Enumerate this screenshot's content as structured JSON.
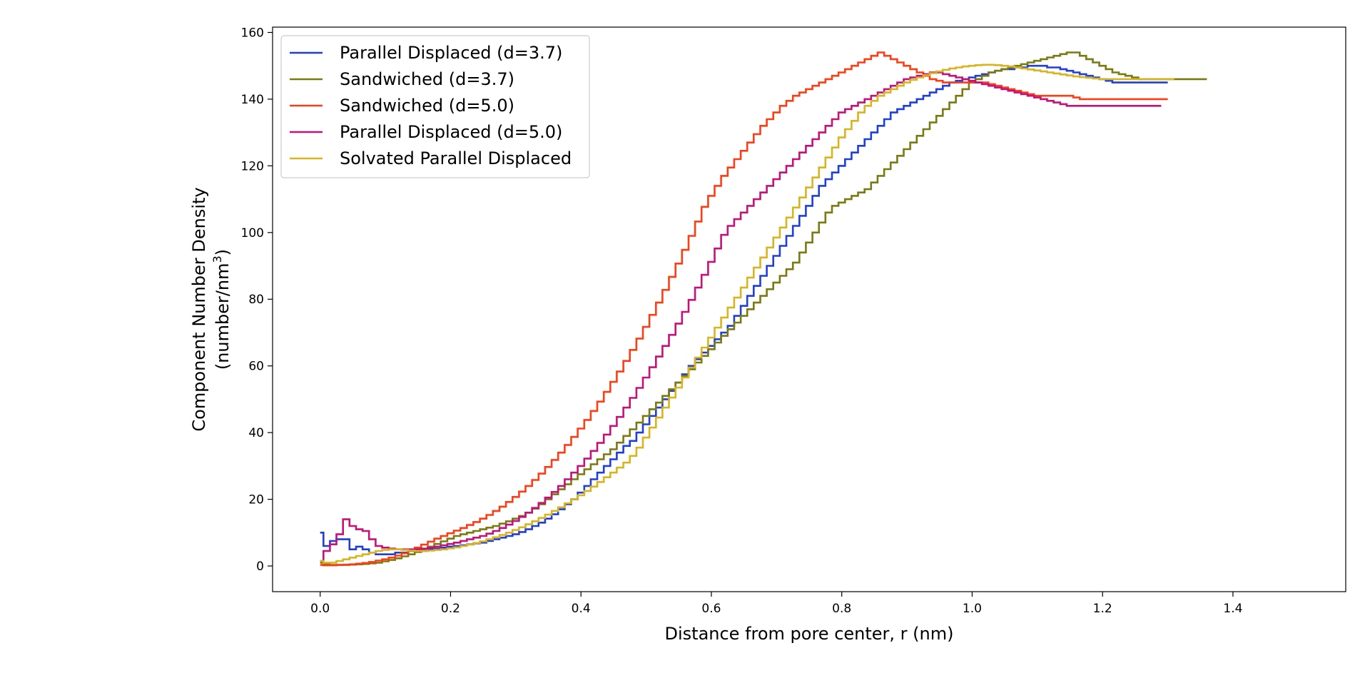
{
  "chart_data": {
    "type": "line",
    "step": true,
    "xlabel": "Distance from pore center, r (nm)",
    "ylabel_line1": "Component Number Density",
    "ylabel_line2": "(number/nm",
    "ylabel_sup": "3",
    "ylabel_close": ")",
    "xlim": [
      -0.073,
      1.573
    ],
    "ylim": [
      -7.7,
      161.6
    ],
    "xticks": [
      0.0,
      0.2,
      0.4,
      0.6,
      0.8,
      1.0,
      1.2,
      1.4
    ],
    "xtick_labels": [
      "0.0",
      "0.2",
      "0.4",
      "0.6",
      "0.8",
      "1.0",
      "1.2",
      "1.4"
    ],
    "yticks": [
      0,
      20,
      40,
      60,
      80,
      100,
      120,
      140,
      160
    ],
    "ytick_labels": [
      "0",
      "20",
      "40",
      "60",
      "80",
      "100",
      "120",
      "140",
      "160"
    ],
    "legend_position": "top-left",
    "grid": false,
    "x_start": 0.0,
    "bin_width": 0.01,
    "series": [
      {
        "name": "Parallel Displaced (d=3.7)",
        "color": "#1f3fd8",
        "values": [
          10,
          6,
          7.5,
          8,
          8,
          5,
          5.8,
          5,
          4,
          3.5,
          3.5,
          3.5,
          4,
          4,
          4.5,
          4.5,
          4.5,
          5,
          5.2,
          5.5,
          5.8,
          6,
          6.2,
          6.5,
          6.8,
          7,
          7.5,
          8,
          8.5,
          9,
          9.5,
          10.2,
          11,
          12,
          13,
          14.2,
          15.5,
          17,
          18.5,
          20,
          22,
          24,
          26,
          28,
          30,
          32,
          34,
          36,
          37.5,
          40,
          42.5,
          45,
          47.5,
          50,
          52.5,
          55,
          57.5,
          60,
          62,
          64,
          66,
          68,
          70,
          72,
          75,
          78,
          81,
          84,
          87,
          90,
          93,
          96,
          99,
          102,
          105,
          108,
          111,
          114,
          116,
          118,
          120,
          122,
          124,
          126,
          128,
          130,
          132,
          134,
          136,
          137,
          138,
          139,
          140,
          141,
          142,
          143,
          144,
          145,
          145.5,
          146,
          146.5,
          147,
          147.5,
          148,
          148.5,
          149,
          149,
          149.5,
          149.5,
          150,
          150,
          150,
          149.5,
          149.5,
          149,
          148.5,
          148,
          147.5,
          147,
          146.5,
          146,
          145.5,
          145,
          145,
          145,
          145,
          145,
          145,
          145,
          145,
          145
        ]
      },
      {
        "name": "Sandwiched (d=3.7)",
        "color": "#7a7a10",
        "values": [
          1,
          0.5,
          0.3,
          0.3,
          0.3,
          0.4,
          0.5,
          0.6,
          0.8,
          1,
          1.4,
          1.8,
          2.3,
          2.9,
          3.5,
          4.2,
          5,
          5.8,
          6.6,
          7.4,
          8.2,
          9,
          9.5,
          10,
          10.5,
          11,
          11.5,
          12,
          12.7,
          13.4,
          14.2,
          15,
          16,
          17.2,
          18.5,
          20,
          21.5,
          23,
          24.5,
          26,
          27.5,
          29,
          30.5,
          32,
          33.5,
          35,
          37,
          39,
          41,
          43,
          45,
          47,
          49,
          51,
          53,
          55,
          57,
          59,
          61,
          63,
          65,
          67,
          69,
          71,
          73,
          75,
          77,
          79,
          81,
          83,
          85,
          87,
          89,
          91,
          94,
          97,
          100,
          103,
          106,
          108,
          109,
          110,
          111,
          112,
          113,
          115,
          117,
          119,
          121,
          123,
          125,
          127,
          129,
          131,
          133,
          135,
          137,
          139,
          141,
          143,
          145,
          146,
          147,
          148,
          148.5,
          149,
          149.5,
          150,
          150.5,
          151,
          151.5,
          152,
          152.5,
          153,
          153.5,
          154,
          154,
          153,
          152,
          151,
          150,
          149,
          148,
          147.5,
          147,
          146.5,
          146,
          146,
          146,
          146,
          146,
          146,
          146,
          146,
          146,
          146,
          146
        ]
      },
      {
        "name": "Sandwiched (d=5.0)",
        "color": "#ff3d14",
        "values": [
          0.3,
          0.2,
          0.2,
          0.3,
          0.4,
          0.5,
          0.7,
          0.9,
          1.2,
          1.6,
          2,
          2.5,
          3.1,
          3.8,
          4.6,
          5.5,
          6.4,
          7.3,
          8.2,
          9,
          9.8,
          10.6,
          11.4,
          12.3,
          13.2,
          14.2,
          15.3,
          16.5,
          17.8,
          19.2,
          20.7,
          22.3,
          24,
          25.8,
          27.7,
          29.7,
          31.8,
          34,
          36.3,
          38.7,
          41.2,
          43.8,
          46.5,
          49.3,
          52.2,
          55.2,
          58.3,
          61.5,
          64.8,
          68.2,
          71.7,
          75.3,
          79,
          82.8,
          86.7,
          90.7,
          94.8,
          99,
          103.3,
          107.7,
          111,
          114,
          117,
          119.5,
          122,
          124.5,
          127,
          129.5,
          132,
          134,
          136,
          138,
          139.5,
          141,
          142,
          143,
          144,
          145,
          146,
          147,
          148,
          149,
          150,
          151,
          152,
          153,
          154,
          153,
          152,
          151,
          150,
          149,
          148,
          147,
          146,
          145.5,
          145,
          145,
          145,
          145,
          145,
          145,
          145,
          144.5,
          144,
          143.5,
          143,
          142.5,
          142,
          141.5,
          141,
          141,
          141,
          141,
          141,
          141,
          140.5,
          140,
          140,
          140,
          140,
          140,
          140,
          140,
          140,
          140,
          140,
          140,
          140,
          140,
          140
        ]
      },
      {
        "name": "Parallel Displaced (d=5.0)",
        "color": "#c4127a",
        "values": [
          1.5,
          4.5,
          6.5,
          9.5,
          14,
          12,
          11,
          10.5,
          8,
          6,
          5.5,
          5.2,
          5,
          5,
          5,
          5,
          5.2,
          5.5,
          5.8,
          6.2,
          6.6,
          7,
          7.5,
          8,
          8.5,
          9,
          9.7,
          10.5,
          11.4,
          12.4,
          13.5,
          14.7,
          16,
          17.4,
          18.9,
          20.5,
          22.2,
          24,
          26,
          28,
          30,
          32.2,
          34.5,
          36.9,
          39.4,
          42,
          44.7,
          47.5,
          50.4,
          53.4,
          56.5,
          59.6,
          62.8,
          66,
          69.3,
          72.7,
          76.2,
          79.8,
          83.5,
          87.3,
          91.2,
          95.2,
          99.3,
          102,
          104,
          106,
          108,
          110,
          112,
          114,
          116,
          118,
          120,
          122,
          124,
          126,
          128,
          130,
          132,
          134,
          136,
          137,
          138,
          139,
          140,
          141,
          142,
          143,
          144,
          145,
          146,
          146.5,
          147,
          147.5,
          148,
          148,
          147.5,
          147,
          146.5,
          146,
          145.5,
          145,
          144.5,
          144,
          143.5,
          143,
          142.5,
          142,
          141.5,
          141,
          140.5,
          140,
          139.5,
          139,
          138.5,
          138,
          138,
          138,
          138,
          138,
          138,
          138,
          138,
          138,
          138,
          138,
          138,
          138,
          138,
          138
        ]
      },
      {
        "name": "Solvated Parallel Displaced",
        "color": "#d8b41e",
        "values": [
          1.5,
          1,
          1,
          1.5,
          2,
          2.5,
          3,
          3.5,
          4,
          4.5,
          4.8,
          5,
          5,
          4.8,
          4.6,
          4.5,
          4.5,
          4.6,
          4.8,
          5,
          5.3,
          5.6,
          6,
          6.4,
          6.9,
          7.4,
          8,
          8.6,
          9.3,
          10,
          10.8,
          11.6,
          12.5,
          13.4,
          14.4,
          15.4,
          16.5,
          17.6,
          18.8,
          20,
          21.2,
          22.5,
          23.8,
          25.2,
          26.6,
          28,
          29.5,
          31,
          33,
          35.5,
          38.5,
          41.5,
          44.5,
          47.5,
          50.5,
          53.5,
          56.5,
          59.5,
          62.5,
          65.5,
          68.5,
          71.5,
          74.5,
          77.5,
          80.5,
          83.5,
          86.5,
          89.5,
          92.5,
          95.5,
          98.5,
          101.5,
          104.5,
          107.5,
          110.5,
          113.5,
          116.5,
          119.5,
          122.5,
          125.5,
          128.5,
          131,
          133.5,
          136,
          138,
          139.5,
          141,
          142,
          143,
          144,
          145,
          145.8,
          146.5,
          147.2,
          147.8,
          148.3,
          148.8,
          149.2,
          149.5,
          149.8,
          150,
          150.2,
          150.3,
          150.3,
          150.2,
          150,
          149.8,
          149.5,
          149.2,
          148.9,
          148.6,
          148.3,
          148,
          147.7,
          147.4,
          147.1,
          146.8,
          146.6,
          146.4,
          146.2,
          146,
          146,
          146,
          146,
          146,
          146,
          146,
          146,
          146,
          146,
          146,
          146
        ]
      }
    ]
  }
}
